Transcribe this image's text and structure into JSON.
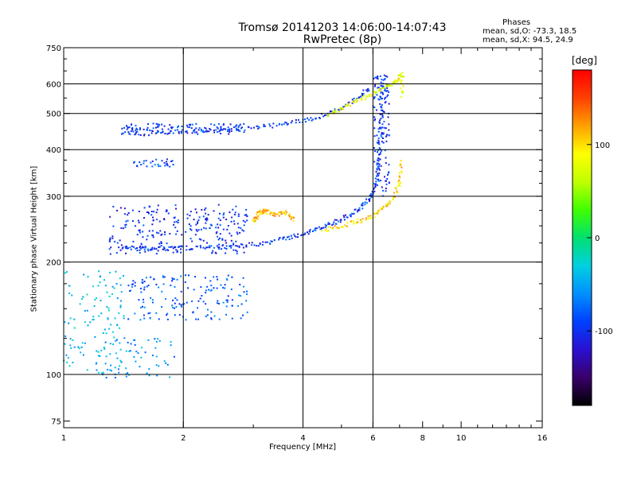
{
  "title_line1": "Tromsø 20141203 14:06:00-14:07:43",
  "title_line2": "RwPretec (8p)",
  "phases_label": "Phases",
  "phases_o": "mean, sd,O: -73.3, 18.5",
  "phases_x": "mean, sd,X:  94.5, 24.9",
  "colors": {
    "colormap": [
      "#000000",
      "#3a006a",
      "#2a10d0",
      "#0040ff",
      "#0090ff",
      "#00d0e0",
      "#00e070",
      "#40ff00",
      "#c0ff00",
      "#ffff00",
      "#ffa000",
      "#ff4000",
      "#ff0000"
    ],
    "o_mode": "#1060e0",
    "x_mode": "#e0e020"
  },
  "chart_data": {
    "type": "scatter",
    "xlabel": "Frequency [MHz]",
    "ylabel": "Stationary phase Virtual Height [km]",
    "x_scale": "log",
    "y_scale": "log",
    "xlim": [
      1,
      16
    ],
    "ylim": [
      72,
      750
    ],
    "x_ticks": [
      1,
      2,
      4,
      6,
      8,
      10,
      16
    ],
    "y_ticks": [
      75,
      100,
      200,
      300,
      400,
      500,
      600,
      750
    ],
    "x_gridlines": [
      2,
      4,
      6
    ],
    "y_gridlines": [
      100,
      200,
      300,
      400,
      500,
      600
    ],
    "grid": true,
    "colorbar": {
      "label": "[deg]",
      "range": [
        -180,
        180
      ],
      "ticks": [
        -100,
        0,
        100
      ]
    },
    "series": [
      {
        "traces": [
          {
            "name_hint": "o_mode_lower",
            "x": [
              1.4,
              1.6,
              1.8,
              2.0,
              2.4,
              2.8,
              3.2,
              3.6,
              4.0,
              4.4,
              4.8,
              5.2,
              5.6,
              5.9,
              6.1
            ],
            "y": [
              218,
              217,
              217,
              218,
              219,
              221,
              225,
              231,
              238,
              246,
              255,
              266,
              280,
              296,
              320
            ],
            "phase": -95
          },
          {
            "name_hint": "o_mode_cusp",
            "x": [
              6.1,
              6.2,
              6.25,
              6.3,
              6.3,
              6.35
            ],
            "y": [
              320,
              360,
              420,
              480,
              560,
              620
            ],
            "phase": -95
          },
          {
            "name_hint": "o_mode_upper",
            "x": [
              1.4,
              1.7,
              2.0,
              2.5,
              3.0,
              3.5,
              4.0,
              4.5,
              5.0,
              5.5,
              5.9
            ],
            "y": [
              440,
              443,
              446,
              452,
              458,
              466,
              478,
              495,
              518,
              548,
              590
            ],
            "phase": -95
          },
          {
            "name_hint": "x_mode_lower",
            "x": [
              4.5,
              5.0,
              5.5,
              6.0,
              6.4,
              6.8,
              7.0,
              7.1
            ],
            "y": [
              243,
              250,
              257,
              266,
              280,
              300,
              330,
              380
            ],
            "phase": 100
          },
          {
            "name_hint": "x_mode_upper",
            "x": [
              4.6,
              5.0,
              5.5,
              6.0,
              6.5,
              6.9,
              7.1,
              7.1
            ],
            "y": [
              495,
              515,
              540,
              565,
              590,
              610,
              640,
              550
            ],
            "phase": 80
          },
          {
            "name_hint": "x_mode_cluster",
            "x": [
              3.0,
              3.1,
              3.2,
              3.4,
              3.6,
              3.8
            ],
            "y": [
              255,
              270,
              275,
              268,
              272,
              260
            ],
            "phase": 110
          }
        ]
      }
    ],
    "scatter_clouds": [
      {
        "x_range": [
          1.3,
          2.9
        ],
        "y_range": [
          210,
          285
        ],
        "phase": -100,
        "count": 260
      },
      {
        "x_range": [
          1.4,
          2.9
        ],
        "y_range": [
          440,
          470
        ],
        "phase": -95,
        "count": 120
      },
      {
        "x_range": [
          1.5,
          1.9
        ],
        "y_range": [
          360,
          378
        ],
        "phase": -90,
        "count": 30
      },
      {
        "x_range": [
          1.45,
          2.9
        ],
        "y_range": [
          140,
          185
        ],
        "phase": -80,
        "count": 160
      },
      {
        "x_range": [
          1.0,
          1.45
        ],
        "y_range": [
          100,
          190
        ],
        "phase": -40,
        "count": 120
      },
      {
        "x_range": [
          1.25,
          1.9
        ],
        "y_range": [
          98,
          125
        ],
        "phase": -60,
        "count": 60
      },
      {
        "x_range": [
          6.0,
          6.6
        ],
        "y_range": [
          300,
          640
        ],
        "phase": -100,
        "count": 120
      }
    ]
  }
}
